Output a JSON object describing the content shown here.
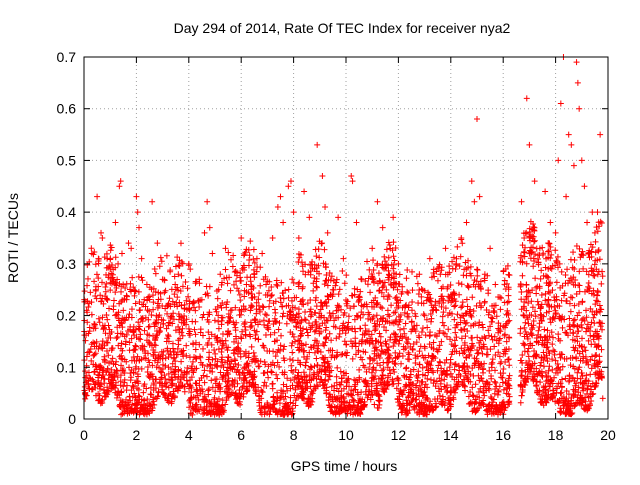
{
  "chart_data": {
    "type": "scatter",
    "title": "Day 294 of 2014, Rate Of TEC Index for receiver nya2",
    "xlabel": "GPS time / hours",
    "ylabel": "ROTI / TECUs",
    "xlim": [
      0,
      20
    ],
    "ylim": [
      0,
      0.7
    ],
    "xticks": [
      0,
      2,
      4,
      6,
      8,
      10,
      12,
      14,
      16,
      18,
      20
    ],
    "yticks": [
      0,
      0.1,
      0.2,
      0.3,
      0.4,
      0.5,
      0.6,
      0.7
    ],
    "xtick_labels": [
      "0",
      "2",
      "4",
      "6",
      "8",
      "10",
      "12",
      "14",
      "16",
      "18",
      "20"
    ],
    "ytick_labels": [
      "0",
      "0.1",
      "0.2",
      "0.3",
      "0.4",
      "0.5",
      "0.6",
      "0.7"
    ],
    "grid": true,
    "legend": "none",
    "marker": "plus",
    "color": "#ff0000",
    "data_gaps_hours": [
      [
        16.25,
        16.65
      ]
    ],
    "series": [
      {
        "name": "ROTI",
        "points": [
          [
            0.05,
            0.08
          ],
          [
            0.1,
            0.21
          ],
          [
            0.2,
            0.13
          ],
          [
            0.3,
            0.32
          ],
          [
            0.4,
            0.18
          ],
          [
            0.45,
            0.25
          ],
          [
            0.5,
            0.43
          ],
          [
            0.55,
            0.31
          ],
          [
            0.65,
            0.36
          ],
          [
            0.7,
            0.35
          ],
          [
            0.8,
            0.11
          ],
          [
            0.9,
            0.23
          ],
          [
            1.0,
            0.29
          ],
          [
            1.1,
            0.06
          ],
          [
            1.2,
            0.38
          ],
          [
            1.3,
            0.3
          ],
          [
            1.35,
            0.45
          ],
          [
            1.4,
            0.46
          ],
          [
            1.45,
            0.32
          ],
          [
            1.5,
            0.21
          ],
          [
            1.6,
            0.15
          ],
          [
            1.7,
            0.34
          ],
          [
            1.8,
            0.33
          ],
          [
            1.9,
            0.12
          ],
          [
            2.0,
            0.43
          ],
          [
            2.05,
            0.4
          ],
          [
            2.1,
            0.37
          ],
          [
            2.2,
            0.31
          ],
          [
            2.3,
            0.14
          ],
          [
            2.4,
            0.26
          ],
          [
            2.6,
            0.42
          ],
          [
            2.7,
            0.29
          ],
          [
            2.8,
            0.34
          ],
          [
            2.9,
            0.17
          ],
          [
            3.0,
            0.27
          ],
          [
            3.2,
            0.22
          ],
          [
            3.4,
            0.09
          ],
          [
            3.6,
            0.28
          ],
          [
            3.8,
            0.19
          ],
          [
            4.0,
            0.3
          ],
          [
            4.2,
            0.12
          ],
          [
            4.4,
            0.27
          ],
          [
            4.6,
            0.36
          ],
          [
            4.7,
            0.42
          ],
          [
            4.8,
            0.37
          ],
          [
            4.9,
            0.32
          ],
          [
            5.0,
            0.16
          ],
          [
            5.2,
            0.28
          ],
          [
            5.4,
            0.33
          ],
          [
            5.6,
            0.21
          ],
          [
            5.8,
            0.05
          ],
          [
            6.0,
            0.35
          ],
          [
            6.2,
            0.26
          ],
          [
            6.4,
            0.18
          ],
          [
            6.6,
            0.31
          ],
          [
            6.8,
            0.32
          ],
          [
            7.0,
            0.24
          ],
          [
            7.2,
            0.35
          ],
          [
            7.4,
            0.41
          ],
          [
            7.5,
            0.43
          ],
          [
            7.6,
            0.38
          ],
          [
            7.8,
            0.45
          ],
          [
            7.9,
            0.46
          ],
          [
            8.0,
            0.4
          ],
          [
            8.2,
            0.35
          ],
          [
            8.4,
            0.44
          ],
          [
            8.6,
            0.39
          ],
          [
            8.8,
            0.29
          ],
          [
            8.9,
            0.53
          ],
          [
            9.0,
            0.18
          ],
          [
            9.1,
            0.47
          ],
          [
            9.2,
            0.41
          ],
          [
            9.3,
            0.36
          ],
          [
            9.5,
            0.25
          ],
          [
            9.7,
            0.39
          ],
          [
            9.9,
            0.31
          ],
          [
            10.0,
            0.23
          ],
          [
            10.2,
            0.47
          ],
          [
            10.25,
            0.46
          ],
          [
            10.4,
            0.38
          ],
          [
            10.6,
            0.27
          ],
          [
            10.8,
            0.17
          ],
          [
            11.0,
            0.33
          ],
          [
            11.2,
            0.42
          ],
          [
            11.4,
            0.37
          ],
          [
            11.6,
            0.21
          ],
          [
            11.8,
            0.39
          ],
          [
            12.0,
            0.3
          ],
          [
            12.2,
            0.14
          ],
          [
            12.4,
            0.22
          ],
          [
            12.6,
            0.18
          ],
          [
            12.8,
            0.28
          ],
          [
            13.0,
            0.2
          ],
          [
            13.2,
            0.31
          ],
          [
            13.4,
            0.22
          ],
          [
            13.6,
            0.28
          ],
          [
            13.8,
            0.33
          ],
          [
            14.0,
            0.24
          ],
          [
            14.2,
            0.3
          ],
          [
            14.4,
            0.35
          ],
          [
            14.6,
            0.38
          ],
          [
            14.8,
            0.46
          ],
          [
            14.9,
            0.42
          ],
          [
            15.0,
            0.58
          ],
          [
            15.1,
            0.43
          ],
          [
            15.3,
            0.28
          ],
          [
            15.5,
            0.33
          ],
          [
            15.7,
            0.26
          ],
          [
            15.9,
            0.18
          ],
          [
            16.1,
            0.29
          ],
          [
            16.7,
            0.42
          ],
          [
            16.8,
            0.35
          ],
          [
            16.9,
            0.62
          ],
          [
            17.0,
            0.53
          ],
          [
            17.2,
            0.46
          ],
          [
            17.4,
            0.33
          ],
          [
            17.6,
            0.44
          ],
          [
            17.8,
            0.38
          ],
          [
            18.0,
            0.36
          ],
          [
            18.1,
            0.5
          ],
          [
            18.2,
            0.61
          ],
          [
            18.3,
            0.7
          ],
          [
            18.4,
            0.43
          ],
          [
            18.5,
            0.55
          ],
          [
            18.6,
            0.53
          ],
          [
            18.7,
            0.49
          ],
          [
            18.8,
            0.69
          ],
          [
            18.85,
            0.65
          ],
          [
            18.9,
            0.6
          ],
          [
            19.0,
            0.5
          ],
          [
            19.1,
            0.45
          ],
          [
            19.2,
            0.38
          ],
          [
            19.4,
            0.4
          ],
          [
            19.5,
            0.36
          ],
          [
            19.6,
            0.4
          ],
          [
            19.7,
            0.55
          ],
          [
            19.8,
            0.04
          ]
        ]
      }
    ],
    "dense_band": {
      "description_free_note": "",
      "segments": [
        {
          "x_range": [
            0.0,
            16.25
          ],
          "y_range": [
            0.02,
            0.3
          ],
          "count": 3400
        },
        {
          "x_range": [
            16.65,
            19.8
          ],
          "y_range": [
            0.03,
            0.34
          ],
          "count": 800
        }
      ]
    }
  }
}
